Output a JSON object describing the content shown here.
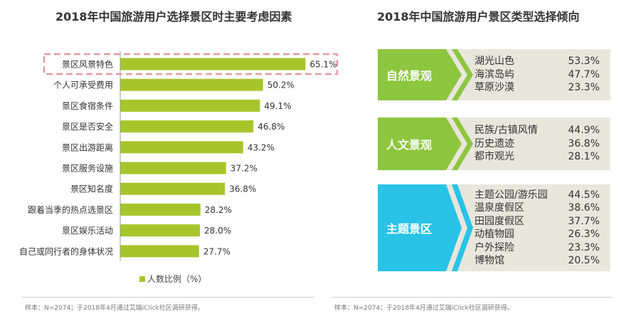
{
  "left_title": "2018年中国旅游用户选择景区时主要考虑因素",
  "right_title": "2018年中国旅游用户景区类型选择倾向",
  "legend_label": "人数比例（%）",
  "footnote_left": "样本：N=2074；于2018年4月通过艾瑞iClick社区调研获得。",
  "footnote_right": "样本：N=2074；于2018年4月通过艾瑞iClick社区调研获得。",
  "colors": {
    "bar": "#a7c52b",
    "highlight_border": "#e79aa3",
    "panel_bg": "#e9e6dc",
    "natural": "#8dc63f",
    "cultural": "#8dc63f",
    "theme": "#29c3e8"
  },
  "chart_data": {
    "type": "bar",
    "orientation": "horizontal",
    "categories": [
      "景区风景特色",
      "个人可承受费用",
      "景区食宿条件",
      "景区是否安全",
      "景区出游距离",
      "景区服务设施",
      "景区知名度",
      "跟着当季的热点选景区",
      "景区娱乐活动",
      "自己或同行者的身体状况"
    ],
    "values": [
      65.1,
      50.2,
      49.1,
      46.8,
      43.2,
      37.2,
      36.8,
      28.2,
      28.0,
      27.7
    ],
    "value_labels": [
      "65.1%",
      "50.2%",
      "49.1%",
      "46.8%",
      "43.2%",
      "37.2%",
      "36.8%",
      "28.2%",
      "28.0%",
      "27.7%"
    ],
    "series": [
      {
        "name": "人数比例（%）",
        "values": [
          65.1,
          50.2,
          49.1,
          46.8,
          43.2,
          37.2,
          36.8,
          28.2,
          28.0,
          27.7
        ]
      }
    ],
    "highlighted_category": "景区风景特色",
    "legend_position": "bottom",
    "grid": false
  },
  "panels": [
    {
      "category": "自然景观",
      "color_key": "natural",
      "items": [
        {
          "name": "湖光山色",
          "pct": "53.3%"
        },
        {
          "name": "海滨岛屿",
          "pct": "47.7%"
        },
        {
          "name": "草原沙漠",
          "pct": "23.3%"
        }
      ]
    },
    {
      "category": "人文景观",
      "color_key": "cultural",
      "items": [
        {
          "name": "民族/古镇风情",
          "pct": "44.9%"
        },
        {
          "name": "历史遗迹",
          "pct": "36.8%"
        },
        {
          "name": "都市观光",
          "pct": "28.1%"
        }
      ]
    },
    {
      "category": "主题景区",
      "color_key": "theme",
      "items": [
        {
          "name": "主题公园/游乐园",
          "pct": "44.5%"
        },
        {
          "name": "温泉度假区",
          "pct": "38.6%"
        },
        {
          "name": "田园度假区",
          "pct": "37.7%"
        },
        {
          "name": "动植物园",
          "pct": "26.3%"
        },
        {
          "name": "户外探险",
          "pct": "23.3%"
        },
        {
          "name": "博物馆",
          "pct": "20.5%"
        }
      ]
    }
  ]
}
